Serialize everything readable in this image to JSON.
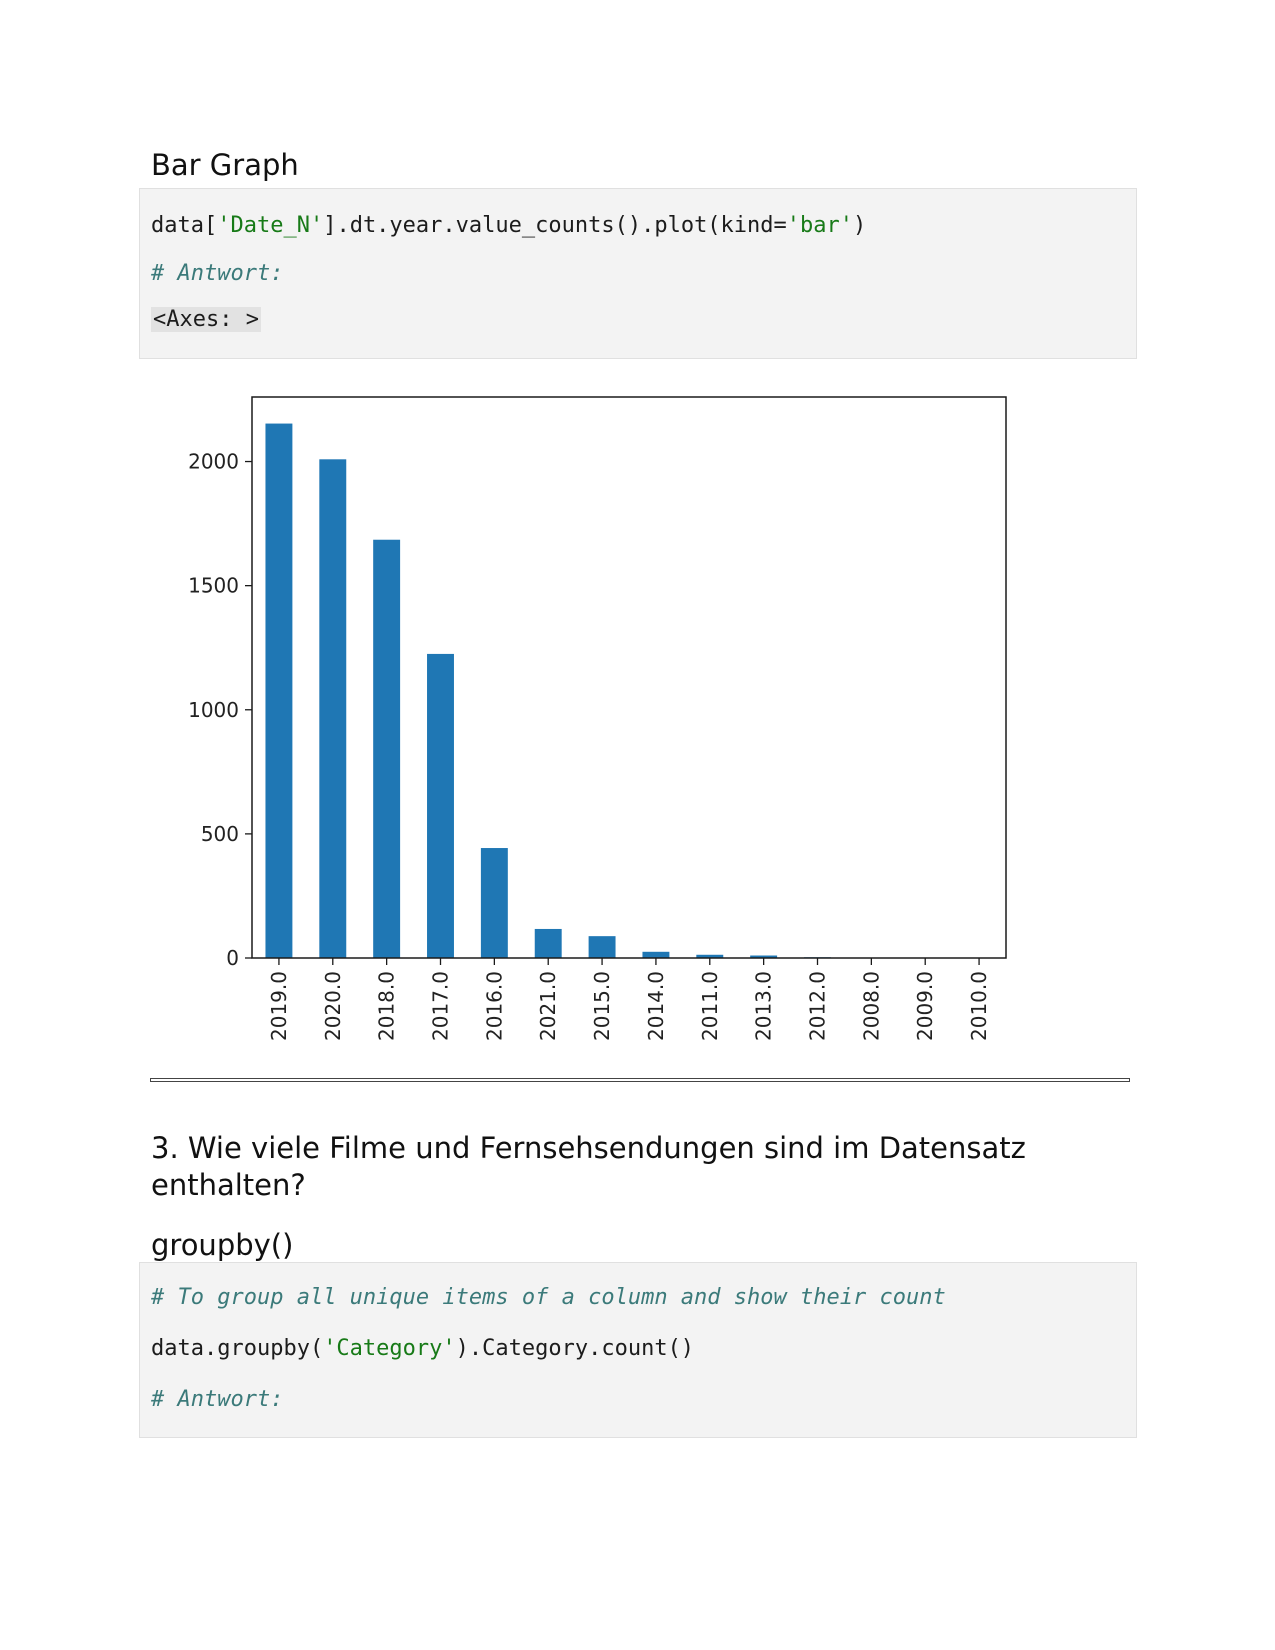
{
  "section1": {
    "heading": "Bar Graph",
    "code": {
      "line1_pre": "data[",
      "line1_str1": "'Date_N'",
      "line1_mid": "].dt.year.value_counts().plot(kind=",
      "line1_str2": "'bar'",
      "line1_post": ")",
      "comment": "# Antwort:",
      "output": "<Axes: >"
    }
  },
  "chart_data": {
    "type": "bar",
    "categories": [
      "2019.0",
      "2020.0",
      "2018.0",
      "2017.0",
      "2016.0",
      "2021.0",
      "2015.0",
      "2014.0",
      "2011.0",
      "2013.0",
      "2012.0",
      "2008.0",
      "2009.0",
      "2010.0"
    ],
    "values": [
      2153,
      2009,
      1685,
      1225,
      443,
      117,
      88,
      25,
      13,
      10,
      3,
      2,
      2,
      1
    ],
    "yticks": [
      0,
      500,
      1000,
      1500,
      2000
    ],
    "ylim": [
      0,
      2260
    ],
    "colors": {
      "bar": "#1f77b4"
    }
  },
  "section3": {
    "heading": "3. Wie viele Filme und Fernsehsendungen sind im Datensatz enthalten?",
    "subheading": "groupby()",
    "code": {
      "comment1": "# To group all unique items of a column and show their count",
      "line_pre": "data.groupby(",
      "line_str": "'Category'",
      "line_post": ").Category.count()",
      "comment2": "# Antwort:"
    }
  }
}
